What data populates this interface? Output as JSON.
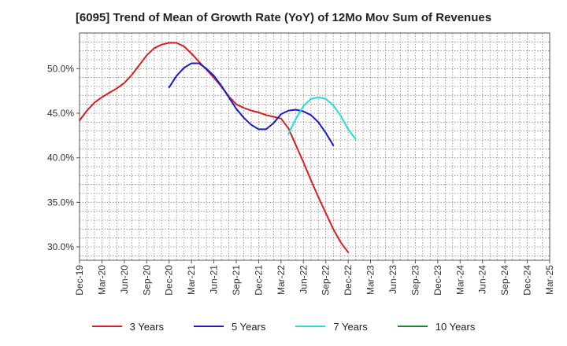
{
  "chart_data": {
    "type": "line",
    "title": "[6095]  Trend of Mean of Growth Rate (YoY) of 12Mo Mov Sum of Revenues",
    "xlabel": "",
    "ylabel": "",
    "ylim": [
      28.5,
      54.0
    ],
    "y_ticks": [
      30.0,
      35.0,
      40.0,
      45.0,
      50.0
    ],
    "y_tick_labels": [
      "30.0%",
      "35.0%",
      "40.0%",
      "45.0%",
      "50.0%"
    ],
    "x_tick_labels": [
      "Dec-19",
      "Mar-20",
      "Jun-20",
      "Sep-20",
      "Dec-20",
      "Mar-21",
      "Jun-21",
      "Sep-21",
      "Dec-21",
      "Mar-22",
      "Jun-22",
      "Sep-22",
      "Dec-22",
      "Mar-23",
      "Jun-23",
      "Sep-23",
      "Dec-23",
      "Mar-24",
      "Jun-24",
      "Sep-24",
      "Dec-24",
      "Mar-25"
    ],
    "x_start": "Dec-19",
    "grid": true,
    "legend_position": "bottom",
    "series": [
      {
        "name": "3 Years",
        "color": "#dd1c1c",
        "start_index": 0,
        "values": [
          44.2,
          45.3,
          46.2,
          46.8,
          47.3,
          47.8,
          48.4,
          49.3,
          50.4,
          51.5,
          52.3,
          52.7,
          52.9,
          52.9,
          52.5,
          51.7,
          50.8,
          49.9,
          49.0,
          48.0,
          46.9,
          46.0,
          45.6,
          45.3,
          45.1,
          44.8,
          44.6,
          44.4,
          43.3,
          41.4,
          39.5,
          37.5,
          35.6,
          33.8,
          32.0,
          30.5,
          29.4
        ]
      },
      {
        "name": "5 Years",
        "color": "#1b1bcc",
        "start_index": 12,
        "values": [
          47.9,
          49.2,
          50.1,
          50.6,
          50.6,
          50.0,
          49.2,
          48.1,
          46.8,
          45.5,
          44.5,
          43.7,
          43.2,
          43.2,
          43.9,
          44.9,
          45.3,
          45.4,
          45.2,
          44.8,
          44.0,
          42.8,
          41.4
        ]
      },
      {
        "name": "7 Years",
        "color": "#22dddd",
        "start_index": 28,
        "values": [
          42.7,
          44.4,
          45.8,
          46.6,
          46.8,
          46.6,
          45.9,
          44.7,
          43.2,
          42.1
        ]
      },
      {
        "name": "10 Years",
        "color": "#1a8a1a",
        "start_index": 0,
        "values": []
      }
    ]
  }
}
